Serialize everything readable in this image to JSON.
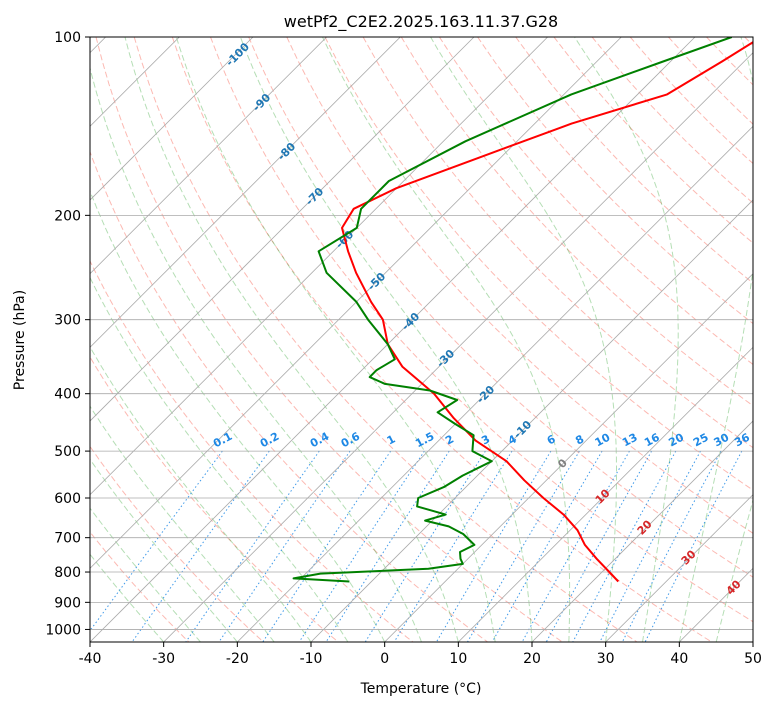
{
  "chart_data": {
    "type": "line",
    "subtype": "skew-t log-p",
    "title": "wetPf2_C2E2.2025.163.11.37.G28",
    "xlabel": "Temperature (°C)",
    "ylabel": "Pressure (hPa)",
    "xlim": [
      -40,
      50
    ],
    "ylim": [
      1050,
      100
    ],
    "y_scale": "log",
    "grid": true,
    "x_ticks": [
      -40,
      -30,
      -20,
      -10,
      0,
      10,
      20,
      30,
      40,
      50
    ],
    "y_ticks": [
      100,
      200,
      300,
      400,
      500,
      600,
      700,
      800,
      900,
      1000
    ],
    "isotherm_labels": [
      "-100",
      "-90",
      "-80",
      "-70",
      "-60",
      "-50",
      "-40",
      "-30",
      "-20",
      "-10",
      "0",
      "10",
      "20",
      "30",
      "40"
    ],
    "mixing_ratio_labels": [
      "0.1",
      "0.2",
      "0.4",
      "0.6",
      "1",
      "1.5",
      "2",
      "3",
      "4",
      "6",
      "8",
      "10",
      "13",
      "16",
      "20",
      "25",
      "30",
      "36"
    ],
    "colors": {
      "temperature": "#ff0000",
      "dewpoint": "#008000",
      "isotherm": "#aaaaaa",
      "dry_adiabat": "#fa8072",
      "moist_adiabat": "#2ca02c",
      "mixing_ratio": "#1e88e5",
      "label_cold": "#1f77b4",
      "label_warm": "#d62728",
      "label_zero": "#808080"
    },
    "series": [
      {
        "name": "Temperature",
        "points": [
          [
            100,
            -31
          ],
          [
            110,
            -33
          ],
          [
            125,
            -36
          ],
          [
            140,
            -45
          ],
          [
            160,
            -53
          ],
          [
            180,
            -60
          ],
          [
            195,
            -63
          ],
          [
            210,
            -62
          ],
          [
            230,
            -58
          ],
          [
            250,
            -54
          ],
          [
            280,
            -48
          ],
          [
            300,
            -44
          ],
          [
            330,
            -40
          ],
          [
            360,
            -35
          ],
          [
            400,
            -27
          ],
          [
            440,
            -21
          ],
          [
            480,
            -15
          ],
          [
            520,
            -8
          ],
          [
            560,
            -3
          ],
          [
            600,
            2
          ],
          [
            640,
            7
          ],
          [
            680,
            11
          ],
          [
            720,
            14
          ],
          [
            760,
            17.5
          ],
          [
            800,
            21
          ],
          [
            830,
            23.5
          ]
        ]
      },
      {
        "name": "Dewpoint",
        "points": [
          [
            100,
            -35
          ],
          [
            110,
            -41
          ],
          [
            125,
            -49
          ],
          [
            150,
            -57
          ],
          [
            175,
            -62
          ],
          [
            195,
            -62
          ],
          [
            210,
            -60
          ],
          [
            230,
            -62
          ],
          [
            250,
            -58
          ],
          [
            280,
            -50
          ],
          [
            300,
            -46
          ],
          [
            330,
            -40
          ],
          [
            350,
            -37
          ],
          [
            365,
            -38
          ],
          [
            375,
            -38
          ],
          [
            385,
            -35
          ],
          [
            395,
            -28
          ],
          [
            410,
            -23
          ],
          [
            430,
            -24
          ],
          [
            450,
            -20
          ],
          [
            470,
            -16
          ],
          [
            500,
            -14
          ],
          [
            520,
            -10
          ],
          [
            550,
            -12
          ],
          [
            575,
            -13
          ],
          [
            600,
            -15
          ],
          [
            620,
            -14
          ],
          [
            640,
            -9
          ],
          [
            655,
            -11
          ],
          [
            670,
            -7
          ],
          [
            690,
            -4
          ],
          [
            720,
            -1
          ],
          [
            740,
            -2
          ],
          [
            760,
            -1
          ],
          [
            775,
            0
          ],
          [
            790,
            -4
          ],
          [
            805,
            -18
          ],
          [
            820,
            -21
          ],
          [
            830,
            -13
          ]
        ]
      }
    ]
  }
}
